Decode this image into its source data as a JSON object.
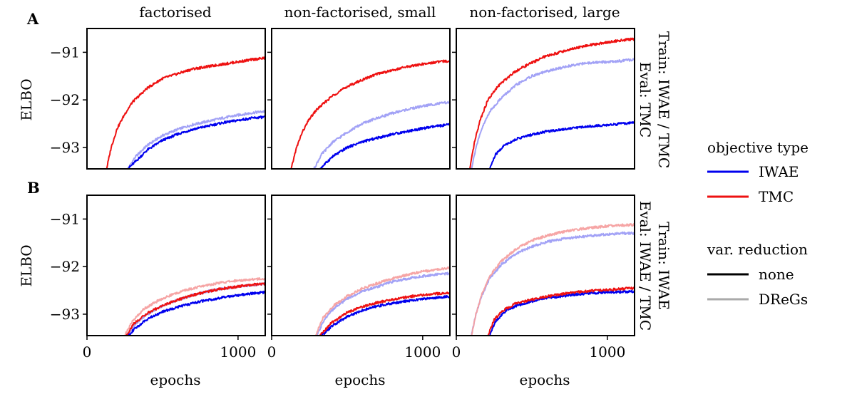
{
  "row_labels": [
    "A",
    "B"
  ],
  "column_titles": [
    "factorised",
    "non-factorised, small",
    "non-factorised, large"
  ],
  "y_axis_label": "ELBO",
  "x_axis_label": "epochs",
  "y_ticks": [
    -91,
    -92,
    -93
  ],
  "y_tick_labels": [
    "−91",
    "−92",
    "−93"
  ],
  "x_ticks": [
    0,
    1000
  ],
  "x_tick_labels": [
    "0",
    "1000"
  ],
  "row_side_labels": [
    [
      "Train: IWAE / TMC",
      "Eval: TMC"
    ],
    [
      "Train: IWAE",
      "Eval: IWAE / TMC"
    ]
  ],
  "legend": {
    "objective_title": "objective type",
    "objective_items": [
      {
        "label": "IWAE",
        "color": "#0000ee"
      },
      {
        "label": "TMC",
        "color": "#ee1111"
      }
    ],
    "reduction_title": "var. reduction",
    "reduction_items": [
      {
        "label": "none",
        "color": "#000000"
      },
      {
        "label": "DReGs",
        "color": "#aaaaaa"
      }
    ]
  },
  "colors": {
    "iwae": "#0000ee",
    "tmc": "#ee1111",
    "iwae_dregs": "#9d9df5",
    "tmc_dregs": "#f5a0a0"
  },
  "chart_data": {
    "type": "line",
    "xlim": [
      0,
      1180
    ],
    "ylim": [
      -93.45,
      -90.5
    ],
    "panels": [
      {
        "row": 0,
        "col": 0,
        "title": "factorised",
        "series": [
          {
            "objective": "IWAE",
            "reduction": "DReGs",
            "x": [
              270,
              320,
              400,
              500,
              600,
              700,
              800,
              900,
              1000,
              1100,
              1180
            ],
            "y": [
              -93.45,
              -93.2,
              -92.95,
              -92.75,
              -92.62,
              -92.52,
              -92.45,
              -92.38,
              -92.32,
              -92.27,
              -92.24
            ]
          },
          {
            "objective": "IWAE",
            "reduction": "none",
            "x": [
              270,
              320,
              400,
              500,
              600,
              700,
              800,
              900,
              1000,
              1100,
              1180
            ],
            "y": [
              -93.45,
              -93.3,
              -93.05,
              -92.85,
              -92.72,
              -92.62,
              -92.55,
              -92.48,
              -92.43,
              -92.38,
              -92.36
            ]
          },
          {
            "objective": "TMC",
            "reduction": "none",
            "x": [
              130,
              160,
              200,
              250,
              300,
              400,
              500,
              600,
              700,
              800,
              900,
              1000,
              1100,
              1180
            ],
            "y": [
              -93.45,
              -93.0,
              -92.6,
              -92.3,
              -92.05,
              -91.75,
              -91.55,
              -91.45,
              -91.35,
              -91.3,
              -91.25,
              -91.2,
              -91.15,
              -91.12
            ]
          }
        ]
      },
      {
        "row": 0,
        "col": 1,
        "title": "non-factorised, small",
        "series": [
          {
            "objective": "IWAE",
            "reduction": "DReGs",
            "x": [
              280,
              330,
              400,
              500,
              600,
              700,
              800,
              900,
              1000,
              1100,
              1180
            ],
            "y": [
              -93.45,
              -93.15,
              -92.9,
              -92.68,
              -92.5,
              -92.38,
              -92.28,
              -92.2,
              -92.13,
              -92.08,
              -92.05
            ]
          },
          {
            "objective": "IWAE",
            "reduction": "none",
            "x": [
              320,
              400,
              500,
              600,
              700,
              800,
              900,
              1000,
              1100,
              1180
            ],
            "y": [
              -93.45,
              -93.2,
              -93.0,
              -92.88,
              -92.8,
              -92.72,
              -92.66,
              -92.6,
              -92.55,
              -92.52
            ]
          },
          {
            "objective": "TMC",
            "reduction": "none",
            "x": [
              130,
              160,
              200,
              250,
              300,
              400,
              500,
              600,
              700,
              800,
              900,
              1000,
              1100,
              1180
            ],
            "y": [
              -93.45,
              -93.05,
              -92.7,
              -92.4,
              -92.2,
              -91.92,
              -91.72,
              -91.58,
              -91.45,
              -91.38,
              -91.3,
              -91.25,
              -91.2,
              -91.18
            ]
          }
        ]
      },
      {
        "row": 0,
        "col": 2,
        "title": "non-factorised, large",
        "series": [
          {
            "objective": "IWAE",
            "reduction": "DReGs",
            "x": [
              100,
              130,
              170,
              220,
              300,
              400,
              500,
              600,
              700,
              800,
              900,
              1000,
              1100,
              1180
            ],
            "y": [
              -93.45,
              -93.0,
              -92.6,
              -92.25,
              -91.95,
              -91.68,
              -91.5,
              -91.4,
              -91.32,
              -91.25,
              -91.22,
              -91.2,
              -91.18,
              -91.15
            ]
          },
          {
            "objective": "IWAE",
            "reduction": "none",
            "x": [
              220,
              260,
              320,
              400,
              500,
              600,
              700,
              800,
              900,
              1000,
              1100,
              1180
            ],
            "y": [
              -93.45,
              -93.15,
              -92.95,
              -92.82,
              -92.73,
              -92.66,
              -92.62,
              -92.58,
              -92.55,
              -92.53,
              -92.5,
              -92.48
            ]
          },
          {
            "objective": "TMC",
            "reduction": "none",
            "x": [
              90,
              120,
              160,
              210,
              280,
              380,
              480,
              580,
              680,
              780,
              880,
              980,
              1080,
              1180
            ],
            "y": [
              -93.45,
              -92.9,
              -92.4,
              -92.0,
              -91.7,
              -91.42,
              -91.25,
              -91.1,
              -91.0,
              -90.92,
              -90.85,
              -90.8,
              -90.75,
              -90.72
            ]
          }
        ]
      },
      {
        "row": 1,
        "col": 0,
        "title": "factorised",
        "series": [
          {
            "objective": "IWAE",
            "reduction": "DReGs",
            "x": [
              270,
              320,
              400,
              500,
              600,
              700,
              800,
              900,
              1000,
              1100,
              1180
            ],
            "y": [
              -93.45,
              -93.2,
              -93.0,
              -92.82,
              -92.7,
              -92.6,
              -92.52,
              -92.46,
              -92.42,
              -92.38,
              -92.36
            ]
          },
          {
            "objective": "TMC",
            "reduction": "DReGs",
            "x": [
              250,
              300,
              380,
              480,
              580,
              680,
              780,
              880,
              980,
              1080,
              1180
            ],
            "y": [
              -93.45,
              -93.15,
              -92.88,
              -92.7,
              -92.57,
              -92.47,
              -92.4,
              -92.34,
              -92.3,
              -92.27,
              -92.25
            ]
          },
          {
            "objective": "IWAE",
            "reduction": "none",
            "x": [
              270,
              320,
              400,
              500,
              600,
              700,
              800,
              900,
              1000,
              1100,
              1180
            ],
            "y": [
              -93.45,
              -93.3,
              -93.1,
              -92.95,
              -92.85,
              -92.77,
              -92.7,
              -92.65,
              -92.6,
              -92.56,
              -92.54
            ]
          },
          {
            "objective": "TMC",
            "reduction": "none",
            "x": [
              260,
              310,
              400,
              500,
              600,
              700,
              800,
              900,
              1000,
              1100,
              1180
            ],
            "y": [
              -93.45,
              -93.2,
              -92.98,
              -92.82,
              -92.7,
              -92.6,
              -92.52,
              -92.46,
              -92.42,
              -92.38,
              -92.36
            ]
          }
        ]
      },
      {
        "row": 1,
        "col": 1,
        "title": "non-factorised, small",
        "series": [
          {
            "objective": "IWAE",
            "reduction": "DReGs",
            "x": [
              300,
              350,
              420,
              500,
              600,
              700,
              800,
              900,
              1000,
              1100,
              1180
            ],
            "y": [
              -93.45,
              -93.1,
              -92.85,
              -92.68,
              -92.52,
              -92.42,
              -92.32,
              -92.25,
              -92.2,
              -92.16,
              -92.14
            ]
          },
          {
            "objective": "TMC",
            "reduction": "DReGs",
            "x": [
              290,
              340,
              410,
              500,
              600,
              700,
              800,
              900,
              1000,
              1100,
              1180
            ],
            "y": [
              -93.45,
              -93.08,
              -92.82,
              -92.62,
              -92.46,
              -92.35,
              -92.25,
              -92.17,
              -92.1,
              -92.06,
              -92.03
            ]
          },
          {
            "objective": "IWAE",
            "reduction": "none",
            "x": [
              330,
              400,
              500,
              600,
              700,
              800,
              900,
              1000,
              1100,
              1180
            ],
            "y": [
              -93.45,
              -93.25,
              -93.05,
              -92.92,
              -92.83,
              -92.77,
              -92.72,
              -92.68,
              -92.65,
              -92.63
            ]
          },
          {
            "objective": "TMC",
            "reduction": "none",
            "x": [
              320,
              390,
              490,
              590,
              690,
              790,
              890,
              990,
              1090,
              1180
            ],
            "y": [
              -93.45,
              -93.2,
              -92.98,
              -92.85,
              -92.76,
              -92.7,
              -92.64,
              -92.6,
              -92.57,
              -92.55
            ]
          }
        ]
      },
      {
        "row": 1,
        "col": 2,
        "title": "non-factorised, large",
        "series": [
          {
            "objective": "IWAE",
            "reduction": "DReGs",
            "x": [
              100,
              130,
              170,
              220,
              300,
              400,
              500,
              600,
              700,
              800,
              900,
              1000,
              1100,
              1180
            ],
            "y": [
              -93.45,
              -93.0,
              -92.6,
              -92.25,
              -91.95,
              -91.72,
              -91.58,
              -91.48,
              -91.42,
              -91.38,
              -91.35,
              -91.32,
              -91.3,
              -91.3
            ]
          },
          {
            "objective": "TMC",
            "reduction": "DReGs",
            "x": [
              100,
              130,
              170,
              220,
              300,
              400,
              500,
              600,
              700,
              800,
              900,
              1000,
              1100,
              1180
            ],
            "y": [
              -93.45,
              -93.0,
              -92.58,
              -92.2,
              -91.88,
              -91.62,
              -91.45,
              -91.35,
              -91.27,
              -91.22,
              -91.18,
              -91.15,
              -91.13,
              -91.12
            ]
          },
          {
            "objective": "IWAE",
            "reduction": "none",
            "x": [
              220,
              260,
              320,
              400,
              500,
              600,
              700,
              800,
              900,
              1000,
              1100,
              1180
            ],
            "y": [
              -93.45,
              -93.15,
              -92.95,
              -92.82,
              -92.73,
              -92.66,
              -92.62,
              -92.58,
              -92.56,
              -92.54,
              -92.53,
              -92.52
            ]
          },
          {
            "objective": "TMC",
            "reduction": "none",
            "x": [
              210,
              250,
              310,
              390,
              490,
              590,
              690,
              790,
              890,
              990,
              1090,
              1180
            ],
            "y": [
              -93.45,
              -93.12,
              -92.92,
              -92.78,
              -92.7,
              -92.63,
              -92.58,
              -92.54,
              -92.51,
              -92.49,
              -92.47,
              -92.45
            ]
          }
        ]
      }
    ]
  }
}
